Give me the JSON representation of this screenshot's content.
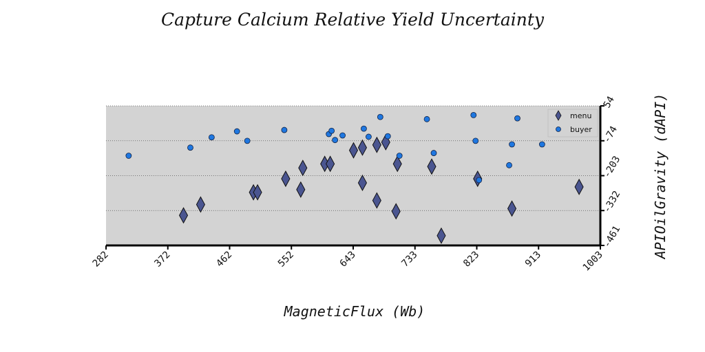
{
  "chart_data": {
    "type": "scatter",
    "title": "Capture Calcium Relative Yield Uncertainty",
    "xlabel": "MagneticFlux (Wb)",
    "ylabel": "APIOilGravity (dAPI)",
    "xlim": [
      282,
      1003
    ],
    "ylim": [
      -461,
      54
    ],
    "xticks": [
      "282",
      "372",
      "462",
      "552",
      "643",
      "733",
      "823",
      "913",
      "1003"
    ],
    "yticks": [
      "54",
      "-74",
      "-203",
      "-332",
      "-461"
    ],
    "grid": "horizontal dotted",
    "legend_position": "top-right",
    "background": "#d3d3d3",
    "series": [
      {
        "name": "menu",
        "marker": "diamond",
        "color": "#4a5590",
        "x": [
          395,
          420,
          497,
          503,
          544,
          566,
          569,
          601,
          609,
          643,
          656,
          656,
          677,
          677,
          690,
          705,
          707,
          757,
          771,
          824,
          874,
          972
        ],
        "y": [
          -350,
          -310,
          -265,
          -265,
          -215,
          -255,
          -175,
          -160,
          -160,
          -110,
          -100,
          -230,
          -295,
          -90,
          -80,
          -335,
          -160,
          -170,
          -425,
          -215,
          -325,
          -245
        ]
      },
      {
        "name": "buyer",
        "marker": "circle",
        "color": "#1f77e0",
        "x": [
          315,
          405,
          436,
          473,
          488,
          542,
          607,
          611,
          616,
          627,
          658,
          665,
          682,
          693,
          710,
          750,
          760,
          818,
          821,
          826,
          870,
          874,
          882,
          918
        ],
        "y": [
          -130,
          -100,
          -62,
          -40,
          -75,
          -35,
          -50,
          -38,
          -72,
          -55,
          -30,
          -60,
          13,
          -58,
          -130,
          5,
          -120,
          20,
          -75,
          -220,
          -165,
          -88,
          8,
          -88
        ]
      }
    ]
  }
}
